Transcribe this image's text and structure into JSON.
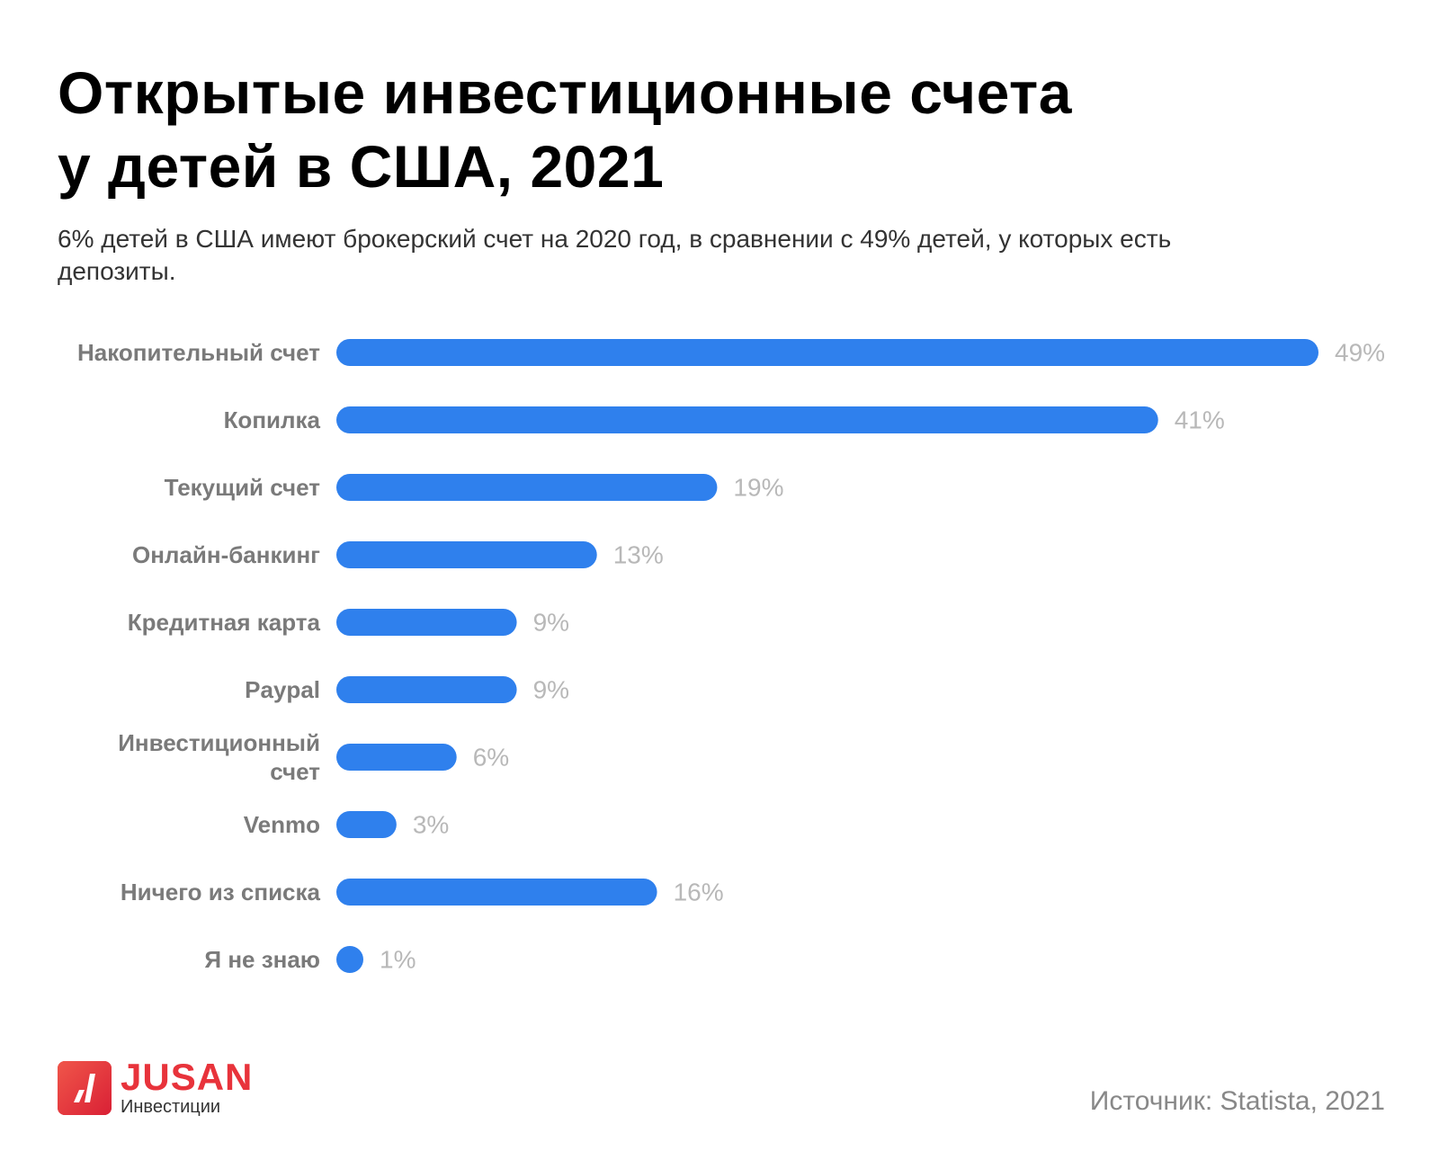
{
  "header": {
    "title_line1": "Открытые инвестиционные счета",
    "title_line2": "у детей в США, 2021",
    "subtitle": "6% детей в США имеют брокерский счет на 2020 год, в сравнении с 49% детей, у которых есть депозиты."
  },
  "chart_data": {
    "type": "bar",
    "orientation": "horizontal",
    "categories": [
      [
        "Накопительный счет"
      ],
      [
        "Копилка"
      ],
      [
        "Текущий счет"
      ],
      [
        "Онлайн-банкинг"
      ],
      [
        "Кредитная карта"
      ],
      [
        "Paypal"
      ],
      [
        "Инвестиционный",
        "счет"
      ],
      [
        "Venmo"
      ],
      [
        "Ничего из списка"
      ],
      [
        "Я не знаю"
      ]
    ],
    "values": [
      49,
      41,
      19,
      13,
      9,
      9,
      6,
      3,
      16,
      1
    ],
    "value_labels": [
      "49%",
      "41%",
      "19%",
      "13%",
      "9%",
      "9%",
      "6%",
      "3%",
      "16%",
      "1%"
    ],
    "xlim": [
      0,
      49
    ],
    "bar_color": "#2f80ed",
    "grid": false,
    "legend": "none"
  },
  "footer": {
    "brand": "JUSAN",
    "brand_sub": "Инвестиции",
    "brand_color": "#e8333b",
    "source": "Источник: Statista, 2021"
  }
}
